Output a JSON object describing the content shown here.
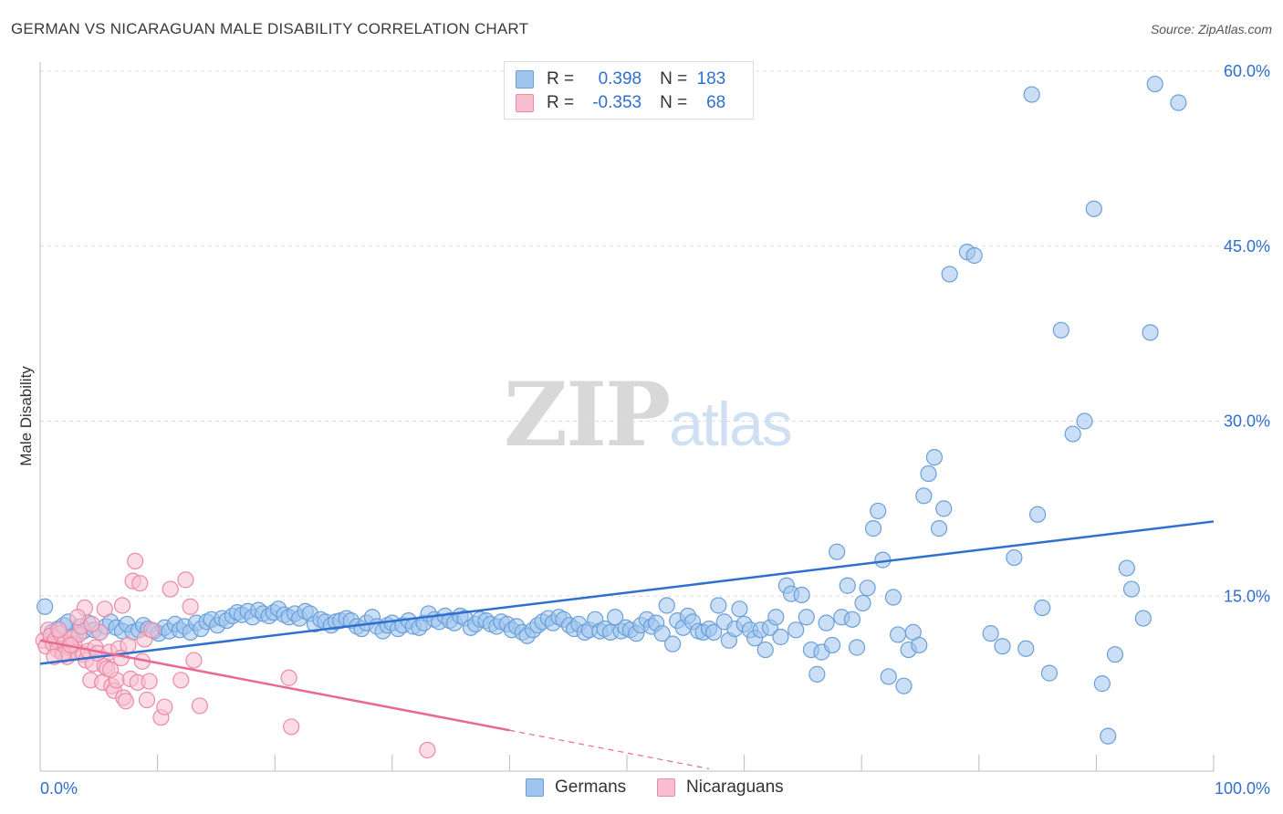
{
  "title": "GERMAN VS NICARAGUAN MALE DISABILITY CORRELATION CHART",
  "source": "Source: ZipAtlas.com",
  "watermark": {
    "zip": "ZIP",
    "atlas": "atlas"
  },
  "legend": {
    "rows": [
      {
        "r_label": "R = ",
        "r_value": "0.398",
        "n_label": "N = ",
        "n_value": "183",
        "color": "#9fc5ee",
        "border": "#6a9fd8"
      },
      {
        "r_label": "R = ",
        "r_value": "-0.353",
        "n_label": "N = ",
        "n_value": "68",
        "color": "#f7bfd0",
        "border": "#ea8aa8"
      }
    ]
  },
  "bottom_legend": [
    {
      "label": "Germans",
      "color": "#9fc5ee",
      "border": "#6a9fd8"
    },
    {
      "label": "Nicaraguans",
      "color": "#f7bfd0",
      "border": "#ea8aa8"
    }
  ],
  "chart_data": {
    "type": "scatter",
    "title": "GERMAN VS NICARAGUAN MALE DISABILITY CORRELATION CHART",
    "xlabel": "",
    "ylabel": "Male Disability",
    "xlim": [
      0,
      100
    ],
    "ylim": [
      0,
      60
    ],
    "x_tick_labels": [
      {
        "value": 0,
        "label": "0.0%"
      },
      {
        "value": 100,
        "label": "100.0%"
      }
    ],
    "y_tick_labels": [
      {
        "value": 15,
        "label": "15.0%"
      },
      {
        "value": 30,
        "label": "30.0%"
      },
      {
        "value": 45,
        "label": "45.0%"
      },
      {
        "value": 60,
        "label": "60.0%"
      }
    ],
    "grid": "horizontal dashed",
    "legend_position": "top-center",
    "series": [
      {
        "name": "Germans",
        "color": "#6a9fd8",
        "fill": "#9fc5ee",
        "trend": {
          "x": [
            0,
            100
          ],
          "y": [
            9.2,
            21.4
          ],
          "color": "#2f6fcf"
        },
        "points": [
          [
            0.4,
            14.1
          ],
          [
            1.0,
            11.9
          ],
          [
            1.5,
            12.2
          ],
          [
            2.0,
            12.5
          ],
          [
            2.4,
            12.8
          ],
          [
            3.0,
            11.6
          ],
          [
            3.4,
            12.4
          ],
          [
            3.7,
            12.0
          ],
          [
            4.1,
            12.7
          ],
          [
            4.6,
            12.1
          ],
          [
            5.1,
            11.9
          ],
          [
            5.6,
            12.4
          ],
          [
            6.0,
            12.8
          ],
          [
            6.5,
            12.3
          ],
          [
            7.0,
            12.0
          ],
          [
            7.4,
            12.6
          ],
          [
            7.9,
            11.9
          ],
          [
            8.4,
            12.1
          ],
          [
            8.8,
            12.5
          ],
          [
            9.2,
            12.2
          ],
          [
            9.7,
            12.0
          ],
          [
            10.1,
            11.8
          ],
          [
            10.6,
            12.3
          ],
          [
            11.0,
            12.0
          ],
          [
            11.5,
            12.6
          ],
          [
            11.9,
            12.1
          ],
          [
            12.3,
            12.4
          ],
          [
            12.8,
            11.9
          ],
          [
            13.3,
            12.7
          ],
          [
            13.7,
            12.2
          ],
          [
            14.2,
            12.8
          ],
          [
            14.6,
            13.0
          ],
          [
            15.1,
            12.5
          ],
          [
            15.5,
            13.1
          ],
          [
            15.9,
            12.9
          ],
          [
            16.4,
            13.3
          ],
          [
            16.8,
            13.6
          ],
          [
            17.2,
            13.4
          ],
          [
            17.7,
            13.7
          ],
          [
            18.1,
            13.2
          ],
          [
            18.6,
            13.8
          ],
          [
            19.0,
            13.5
          ],
          [
            19.5,
            13.3
          ],
          [
            19.9,
            13.6
          ],
          [
            20.3,
            13.9
          ],
          [
            20.8,
            13.4
          ],
          [
            21.2,
            13.2
          ],
          [
            21.7,
            13.5
          ],
          [
            22.1,
            13.1
          ],
          [
            22.6,
            13.7
          ],
          [
            23.0,
            13.5
          ],
          [
            23.4,
            12.6
          ],
          [
            23.9,
            13.0
          ],
          [
            24.3,
            12.8
          ],
          [
            24.8,
            12.5
          ],
          [
            25.2,
            12.8
          ],
          [
            25.6,
            12.9
          ],
          [
            26.1,
            13.1
          ],
          [
            26.5,
            12.9
          ],
          [
            27.0,
            12.4
          ],
          [
            27.4,
            12.2
          ],
          [
            27.8,
            12.7
          ],
          [
            28.3,
            13.2
          ],
          [
            28.7,
            12.4
          ],
          [
            29.2,
            12.0
          ],
          [
            29.6,
            12.5
          ],
          [
            30.0,
            12.7
          ],
          [
            30.5,
            12.2
          ],
          [
            30.9,
            12.5
          ],
          [
            31.4,
            12.9
          ],
          [
            31.8,
            12.4
          ],
          [
            32.3,
            12.3
          ],
          [
            32.7,
            12.7
          ],
          [
            33.1,
            13.5
          ],
          [
            33.6,
            13.0
          ],
          [
            34.0,
            12.8
          ],
          [
            34.5,
            13.3
          ],
          [
            34.9,
            12.9
          ],
          [
            35.3,
            12.7
          ],
          [
            35.8,
            13.3
          ],
          [
            36.2,
            13.1
          ],
          [
            36.7,
            12.3
          ],
          [
            37.1,
            12.6
          ],
          [
            37.5,
            13.0
          ],
          [
            38.0,
            12.9
          ],
          [
            38.4,
            12.6
          ],
          [
            38.9,
            12.4
          ],
          [
            39.3,
            12.8
          ],
          [
            39.8,
            12.6
          ],
          [
            40.2,
            12.1
          ],
          [
            40.6,
            12.4
          ],
          [
            41.1,
            11.9
          ],
          [
            41.5,
            11.6
          ],
          [
            42.0,
            12.1
          ],
          [
            42.4,
            12.5
          ],
          [
            42.8,
            12.8
          ],
          [
            43.3,
            13.1
          ],
          [
            43.7,
            12.7
          ],
          [
            44.2,
            13.2
          ],
          [
            44.6,
            13.0
          ],
          [
            45.1,
            12.5
          ],
          [
            45.5,
            12.2
          ],
          [
            45.9,
            12.6
          ],
          [
            46.4,
            11.9
          ],
          [
            46.8,
            12.1
          ],
          [
            47.3,
            13.0
          ],
          [
            47.7,
            12.0
          ],
          [
            48.1,
            12.2
          ],
          [
            48.6,
            11.9
          ],
          [
            49.0,
            13.2
          ],
          [
            49.5,
            12.0
          ],
          [
            49.9,
            12.3
          ],
          [
            50.3,
            12.1
          ],
          [
            50.8,
            11.8
          ],
          [
            51.2,
            12.5
          ],
          [
            51.7,
            13.0
          ],
          [
            52.1,
            12.4
          ],
          [
            52.5,
            12.7
          ],
          [
            53.0,
            11.8
          ],
          [
            53.4,
            14.2
          ],
          [
            53.9,
            10.9
          ],
          [
            54.3,
            12.9
          ],
          [
            54.8,
            12.3
          ],
          [
            55.2,
            13.3
          ],
          [
            55.6,
            12.8
          ],
          [
            56.1,
            12.0
          ],
          [
            56.5,
            11.9
          ],
          [
            57.0,
            12.2
          ],
          [
            57.4,
            11.9
          ],
          [
            57.8,
            14.2
          ],
          [
            58.3,
            12.8
          ],
          [
            58.7,
            11.2
          ],
          [
            59.2,
            12.2
          ],
          [
            59.6,
            13.9
          ],
          [
            60.0,
            12.6
          ],
          [
            60.5,
            12.1
          ],
          [
            60.9,
            11.4
          ],
          [
            61.4,
            12.1
          ],
          [
            61.8,
            10.4
          ],
          [
            62.2,
            12.3
          ],
          [
            62.7,
            13.2
          ],
          [
            63.1,
            11.5
          ],
          [
            63.6,
            15.9
          ],
          [
            64.0,
            15.2
          ],
          [
            64.4,
            12.1
          ],
          [
            64.9,
            15.1
          ],
          [
            65.3,
            13.2
          ],
          [
            65.7,
            10.4
          ],
          [
            66.2,
            8.3
          ],
          [
            66.6,
            10.2
          ],
          [
            67.0,
            12.7
          ],
          [
            67.5,
            10.8
          ],
          [
            67.9,
            18.8
          ],
          [
            68.3,
            13.2
          ],
          [
            68.8,
            15.9
          ],
          [
            69.2,
            13.0
          ],
          [
            69.6,
            10.6
          ],
          [
            70.1,
            14.4
          ],
          [
            70.5,
            15.7
          ],
          [
            71.0,
            20.8
          ],
          [
            71.4,
            22.3
          ],
          [
            71.8,
            18.1
          ],
          [
            72.3,
            8.1
          ],
          [
            72.7,
            14.9
          ],
          [
            73.1,
            11.7
          ],
          [
            73.6,
            7.3
          ],
          [
            74.0,
            10.4
          ],
          [
            74.4,
            11.9
          ],
          [
            74.9,
            10.8
          ],
          [
            75.3,
            23.6
          ],
          [
            75.7,
            25.5
          ],
          [
            76.2,
            26.9
          ],
          [
            76.6,
            20.8
          ],
          [
            77.0,
            22.5
          ],
          [
            77.5,
            42.6
          ],
          [
            79.0,
            44.5
          ],
          [
            79.6,
            44.2
          ],
          [
            81.0,
            11.8
          ],
          [
            82.0,
            10.7
          ],
          [
            83.0,
            18.3
          ],
          [
            84.0,
            10.5
          ],
          [
            84.5,
            58.0
          ],
          [
            85.0,
            22.0
          ],
          [
            85.4,
            14.0
          ],
          [
            86.0,
            8.4
          ],
          [
            87.0,
            37.8
          ],
          [
            88.0,
            28.9
          ],
          [
            89.0,
            30.0
          ],
          [
            89.8,
            48.2
          ],
          [
            90.5,
            7.5
          ],
          [
            91.0,
            3.0
          ],
          [
            91.6,
            10.0
          ],
          [
            92.6,
            17.4
          ],
          [
            93.0,
            15.6
          ],
          [
            94.0,
            13.1
          ],
          [
            94.6,
            37.6
          ],
          [
            95.0,
            58.9
          ],
          [
            97.0,
            57.3
          ]
        ]
      },
      {
        "name": "Nicaraguans",
        "color": "#ea8aa8",
        "fill": "#f7bfd0",
        "trend": {
          "x": [
            0,
            40
          ],
          "y": [
            11.2,
            3.5
          ],
          "dash_to": [
            57,
            0.2
          ],
          "color": "#e86a93"
        },
        "points": [
          [
            0.3,
            11.2
          ],
          [
            0.5,
            10.7
          ],
          [
            0.7,
            12.1
          ],
          [
            0.9,
            11.6
          ],
          [
            1.1,
            10.9
          ],
          [
            1.3,
            11.3
          ],
          [
            1.5,
            10.4
          ],
          [
            1.7,
            11.8
          ],
          [
            1.9,
            10.1
          ],
          [
            2.1,
            11.0
          ],
          [
            2.3,
            9.8
          ],
          [
            2.5,
            10.6
          ],
          [
            2.7,
            11.4
          ],
          [
            2.9,
            10.9
          ],
          [
            3.1,
            10.2
          ],
          [
            3.3,
            11.7
          ],
          [
            3.5,
            12.4
          ],
          [
            3.7,
            10.0
          ],
          [
            3.9,
            9.5
          ],
          [
            4.1,
            10.3
          ],
          [
            4.3,
            7.8
          ],
          [
            4.5,
            9.2
          ],
          [
            4.7,
            10.6
          ],
          [
            4.9,
            10.1
          ],
          [
            5.1,
            11.9
          ],
          [
            5.3,
            7.6
          ],
          [
            5.5,
            9.0
          ],
          [
            5.7,
            8.8
          ],
          [
            5.9,
            10.2
          ],
          [
            6.1,
            7.3
          ],
          [
            6.3,
            6.9
          ],
          [
            6.5,
            7.8
          ],
          [
            6.7,
            10.5
          ],
          [
            6.9,
            9.7
          ],
          [
            7.1,
            6.3
          ],
          [
            7.3,
            6.0
          ],
          [
            7.5,
            10.8
          ],
          [
            7.7,
            7.9
          ],
          [
            7.9,
            16.3
          ],
          [
            8.1,
            18.0
          ],
          [
            8.3,
            7.6
          ],
          [
            8.5,
            16.1
          ],
          [
            8.7,
            9.4
          ],
          [
            8.9,
            11.3
          ],
          [
            9.1,
            6.1
          ],
          [
            9.3,
            7.7
          ],
          [
            9.5,
            12.1
          ],
          [
            10.3,
            4.6
          ],
          [
            10.6,
            5.5
          ],
          [
            11.1,
            15.6
          ],
          [
            12.0,
            7.8
          ],
          [
            12.4,
            16.4
          ],
          [
            12.8,
            14.1
          ],
          [
            13.1,
            9.5
          ],
          [
            13.6,
            5.6
          ],
          [
            3.8,
            14.0
          ],
          [
            5.5,
            13.9
          ],
          [
            7.0,
            14.2
          ],
          [
            4.4,
            12.6
          ],
          [
            2.0,
            10.0
          ],
          [
            1.2,
            9.8
          ],
          [
            6.0,
            8.7
          ],
          [
            21.2,
            8.0
          ],
          [
            21.4,
            3.8
          ],
          [
            33.0,
            1.8
          ],
          [
            1.6,
            12.1
          ],
          [
            2.6,
            10.8
          ],
          [
            3.2,
            13.2
          ]
        ]
      }
    ]
  }
}
